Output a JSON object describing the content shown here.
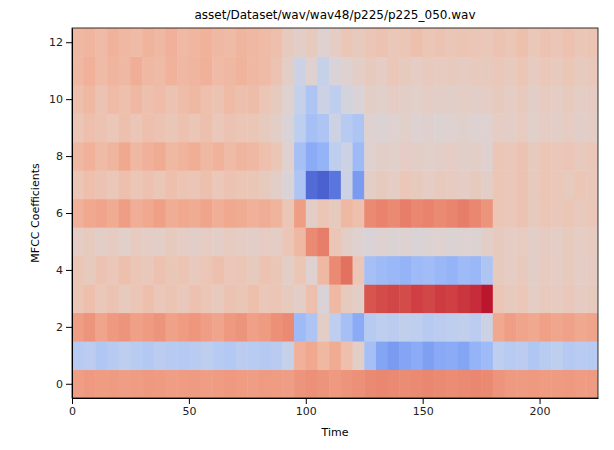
{
  "chart_data": {
    "type": "heatmap",
    "title": "asset/Dataset/wav/wav48/p225/p225_050.wav",
    "xlabel": "Time",
    "ylabel": "MFCC Coefficients",
    "color": "coolwarm",
    "x": [
      0,
      5,
      10,
      15,
      20,
      25,
      30,
      35,
      40,
      45,
      50,
      55,
      60,
      65,
      70,
      75,
      80,
      85,
      90,
      95,
      100,
      105,
      110,
      115,
      120,
      125,
      130,
      135,
      140,
      145,
      150,
      155,
      160,
      165,
      170,
      175,
      180,
      185,
      190,
      195,
      200,
      205,
      210,
      215,
      220
    ],
    "y": [
      0,
      1,
      2,
      3,
      4,
      5,
      6,
      7,
      8,
      9,
      10,
      11,
      12
    ],
    "xlim": [
      0,
      225
    ],
    "ylim": [
      -0.5,
      12.5
    ],
    "xticks": [
      0,
      50,
      100,
      150,
      200
    ],
    "yticks": [
      0,
      2,
      4,
      6,
      8,
      10,
      12
    ],
    "zlim": [
      -1,
      1
    ],
    "values": [
      [
        0.45,
        0.48,
        0.46,
        0.47,
        0.45,
        0.46,
        0.48,
        0.47,
        0.45,
        0.46,
        0.47,
        0.45,
        0.46,
        0.48,
        0.46,
        0.45,
        0.47,
        0.46,
        0.45,
        0.5,
        0.52,
        0.5,
        0.48,
        0.5,
        0.52,
        0.55,
        0.56,
        0.55,
        0.54,
        0.55,
        0.56,
        0.55,
        0.54,
        0.55,
        0.56,
        0.55,
        0.5,
        0.48,
        0.47,
        0.48,
        0.46,
        0.47,
        0.48,
        0.46,
        0.47
      ],
      [
        -0.25,
        -0.22,
        -0.28,
        -0.25,
        -0.2,
        -0.24,
        -0.27,
        -0.22,
        -0.25,
        -0.26,
        -0.23,
        -0.2,
        -0.25,
        -0.27,
        -0.22,
        -0.24,
        -0.26,
        -0.23,
        -0.15,
        0.35,
        0.4,
        0.3,
        0.38,
        0.25,
        0.1,
        -0.35,
        -0.55,
        -0.6,
        -0.55,
        -0.5,
        -0.58,
        -0.52,
        -0.5,
        -0.55,
        -0.45,
        -0.4,
        -0.2,
        -0.25,
        -0.22,
        -0.28,
        -0.24,
        -0.2,
        -0.26,
        -0.23,
        -0.25
      ],
      [
        0.45,
        0.5,
        0.42,
        0.48,
        0.5,
        0.44,
        0.47,
        0.5,
        0.43,
        0.46,
        0.49,
        0.45,
        0.42,
        0.48,
        0.5,
        0.44,
        0.47,
        0.52,
        0.55,
        -0.4,
        -0.3,
        0.1,
        -0.2,
        -0.35,
        -0.5,
        -0.25,
        -0.2,
        -0.22,
        -0.18,
        -0.2,
        -0.25,
        -0.22,
        -0.2,
        -0.18,
        -0.22,
        -0.1,
        0.4,
        0.45,
        0.42,
        0.4,
        0.44,
        0.41,
        0.43,
        0.4,
        0.42
      ],
      [
        0.2,
        0.25,
        0.18,
        0.22,
        0.15,
        0.2,
        0.24,
        0.18,
        0.21,
        0.17,
        0.23,
        0.2,
        0.16,
        0.22,
        0.19,
        0.24,
        0.18,
        0.2,
        0.15,
        0.1,
        0.25,
        0.0,
        0.3,
        0.15,
        0.1,
        0.75,
        0.78,
        0.8,
        0.78,
        0.82,
        0.8,
        0.83,
        0.82,
        0.85,
        0.88,
        0.95,
        0.2,
        0.15,
        0.18,
        0.12,
        0.16,
        0.14,
        0.17,
        0.13,
        0.15
      ],
      [
        0.2,
        0.15,
        0.22,
        0.18,
        0.25,
        0.2,
        0.17,
        0.23,
        0.19,
        0.21,
        0.16,
        0.2,
        0.24,
        0.18,
        0.2,
        0.15,
        0.22,
        0.19,
        0.1,
        0.2,
        0.05,
        0.3,
        0.55,
        0.65,
        0.2,
        -0.35,
        -0.4,
        -0.42,
        -0.45,
        -0.4,
        -0.38,
        -0.42,
        -0.45,
        -0.4,
        -0.42,
        -0.3,
        0.15,
        0.12,
        0.16,
        0.1,
        0.14,
        0.12,
        0.15,
        0.11,
        0.13
      ],
      [
        0.12,
        0.15,
        0.1,
        0.13,
        0.08,
        0.14,
        0.11,
        0.1,
        0.15,
        0.12,
        0.09,
        0.13,
        0.1,
        0.14,
        0.12,
        0.1,
        0.13,
        0.11,
        0.2,
        0.3,
        0.55,
        0.6,
        0.2,
        0.1,
        0.05,
        0.0,
        0.05,
        0.02,
        0.04,
        0.0,
        0.03,
        0.05,
        0.02,
        0.04,
        0.03,
        0.1,
        0.15,
        0.12,
        0.14,
        0.1,
        0.13,
        0.11,
        0.15,
        0.12,
        0.14
      ],
      [
        0.35,
        0.4,
        0.42,
        0.38,
        0.45,
        0.36,
        0.4,
        0.44,
        0.37,
        0.4,
        0.38,
        0.42,
        0.36,
        0.4,
        0.38,
        0.35,
        0.37,
        0.33,
        0.2,
        0.45,
        0.1,
        0.2,
        0.15,
        0.3,
        0.25,
        0.55,
        0.58,
        0.55,
        0.6,
        0.56,
        0.58,
        0.55,
        0.57,
        0.6,
        0.56,
        0.5,
        0.2,
        0.18,
        0.22,
        0.15,
        0.2,
        0.17,
        0.19,
        0.16,
        0.18
      ],
      [
        0.2,
        0.25,
        0.22,
        0.18,
        0.24,
        0.2,
        0.23,
        0.19,
        0.25,
        0.21,
        0.2,
        0.24,
        0.18,
        0.22,
        0.2,
        0.19,
        0.15,
        0.1,
        0.0,
        -0.3,
        -0.85,
        -0.9,
        -0.8,
        -0.1,
        -0.6,
        0.1,
        0.15,
        0.12,
        0.18,
        0.15,
        0.12,
        0.16,
        0.14,
        0.12,
        0.15,
        0.1,
        0.2,
        0.18,
        0.22,
        0.16,
        0.2,
        0.18,
        0.15,
        0.2,
        0.17
      ],
      [
        0.3,
        0.35,
        0.28,
        0.32,
        0.4,
        0.3,
        0.35,
        0.38,
        0.3,
        0.33,
        0.36,
        0.3,
        0.34,
        0.28,
        0.32,
        0.3,
        0.25,
        0.2,
        0.05,
        -0.35,
        -0.5,
        -0.45,
        -0.2,
        -0.1,
        -0.4,
        0.05,
        0.1,
        0.08,
        0.12,
        0.1,
        0.08,
        0.1,
        0.12,
        0.09,
        0.1,
        0.05,
        0.2,
        0.18,
        0.22,
        0.15,
        0.2,
        0.18,
        0.2,
        0.16,
        0.18
      ],
      [
        0.2,
        0.25,
        0.22,
        0.18,
        0.24,
        0.2,
        0.25,
        0.22,
        0.19,
        0.23,
        0.2,
        0.24,
        0.18,
        0.22,
        0.2,
        0.19,
        0.15,
        0.1,
        0.0,
        -0.2,
        -0.35,
        -0.3,
        -0.1,
        -0.25,
        -0.3,
        0.05,
        0.02,
        0.05,
        0.08,
        0.04,
        0.06,
        0.03,
        0.05,
        0.07,
        0.04,
        0.05,
        0.12,
        0.1,
        0.14,
        0.08,
        0.12,
        0.1,
        0.13,
        0.09,
        0.11
      ],
      [
        0.25,
        0.3,
        0.22,
        0.28,
        0.25,
        0.3,
        0.24,
        0.27,
        0.22,
        0.26,
        0.3,
        0.25,
        0.22,
        0.28,
        0.24,
        0.26,
        0.2,
        0.15,
        0.05,
        -0.15,
        -0.3,
        -0.1,
        -0.2,
        -0.05,
        0.0,
        0.1,
        0.08,
        0.12,
        0.1,
        0.08,
        0.12,
        0.1,
        0.09,
        0.11,
        0.1,
        0.12,
        0.15,
        0.12,
        0.16,
        0.1,
        0.14,
        0.12,
        0.15,
        0.11,
        0.13
      ],
      [
        0.3,
        0.35,
        0.28,
        0.32,
        0.3,
        0.36,
        0.3,
        0.28,
        0.34,
        0.3,
        0.32,
        0.35,
        0.28,
        0.3,
        0.33,
        0.3,
        0.28,
        0.22,
        0.1,
        -0.1,
        0.05,
        -0.15,
        0.0,
        0.05,
        0.1,
        0.15,
        0.12,
        0.18,
        0.15,
        0.12,
        0.16,
        0.14,
        0.15,
        0.13,
        0.16,
        0.15,
        0.18,
        0.15,
        0.2,
        0.14,
        0.18,
        0.16,
        0.19,
        0.15,
        0.17
      ],
      [
        0.3,
        0.32,
        0.28,
        0.34,
        0.3,
        0.28,
        0.33,
        0.3,
        0.35,
        0.29,
        0.31,
        0.34,
        0.3,
        0.28,
        0.32,
        0.3,
        0.28,
        0.25,
        0.15,
        0.1,
        0.15,
        0.05,
        0.12,
        0.2,
        0.15,
        0.2,
        0.22,
        0.18,
        0.2,
        0.24,
        0.2,
        0.22,
        0.19,
        0.21,
        0.2,
        0.18,
        0.22,
        0.2,
        0.24,
        0.18,
        0.22,
        0.2,
        0.23,
        0.19,
        0.21
      ]
    ]
  }
}
